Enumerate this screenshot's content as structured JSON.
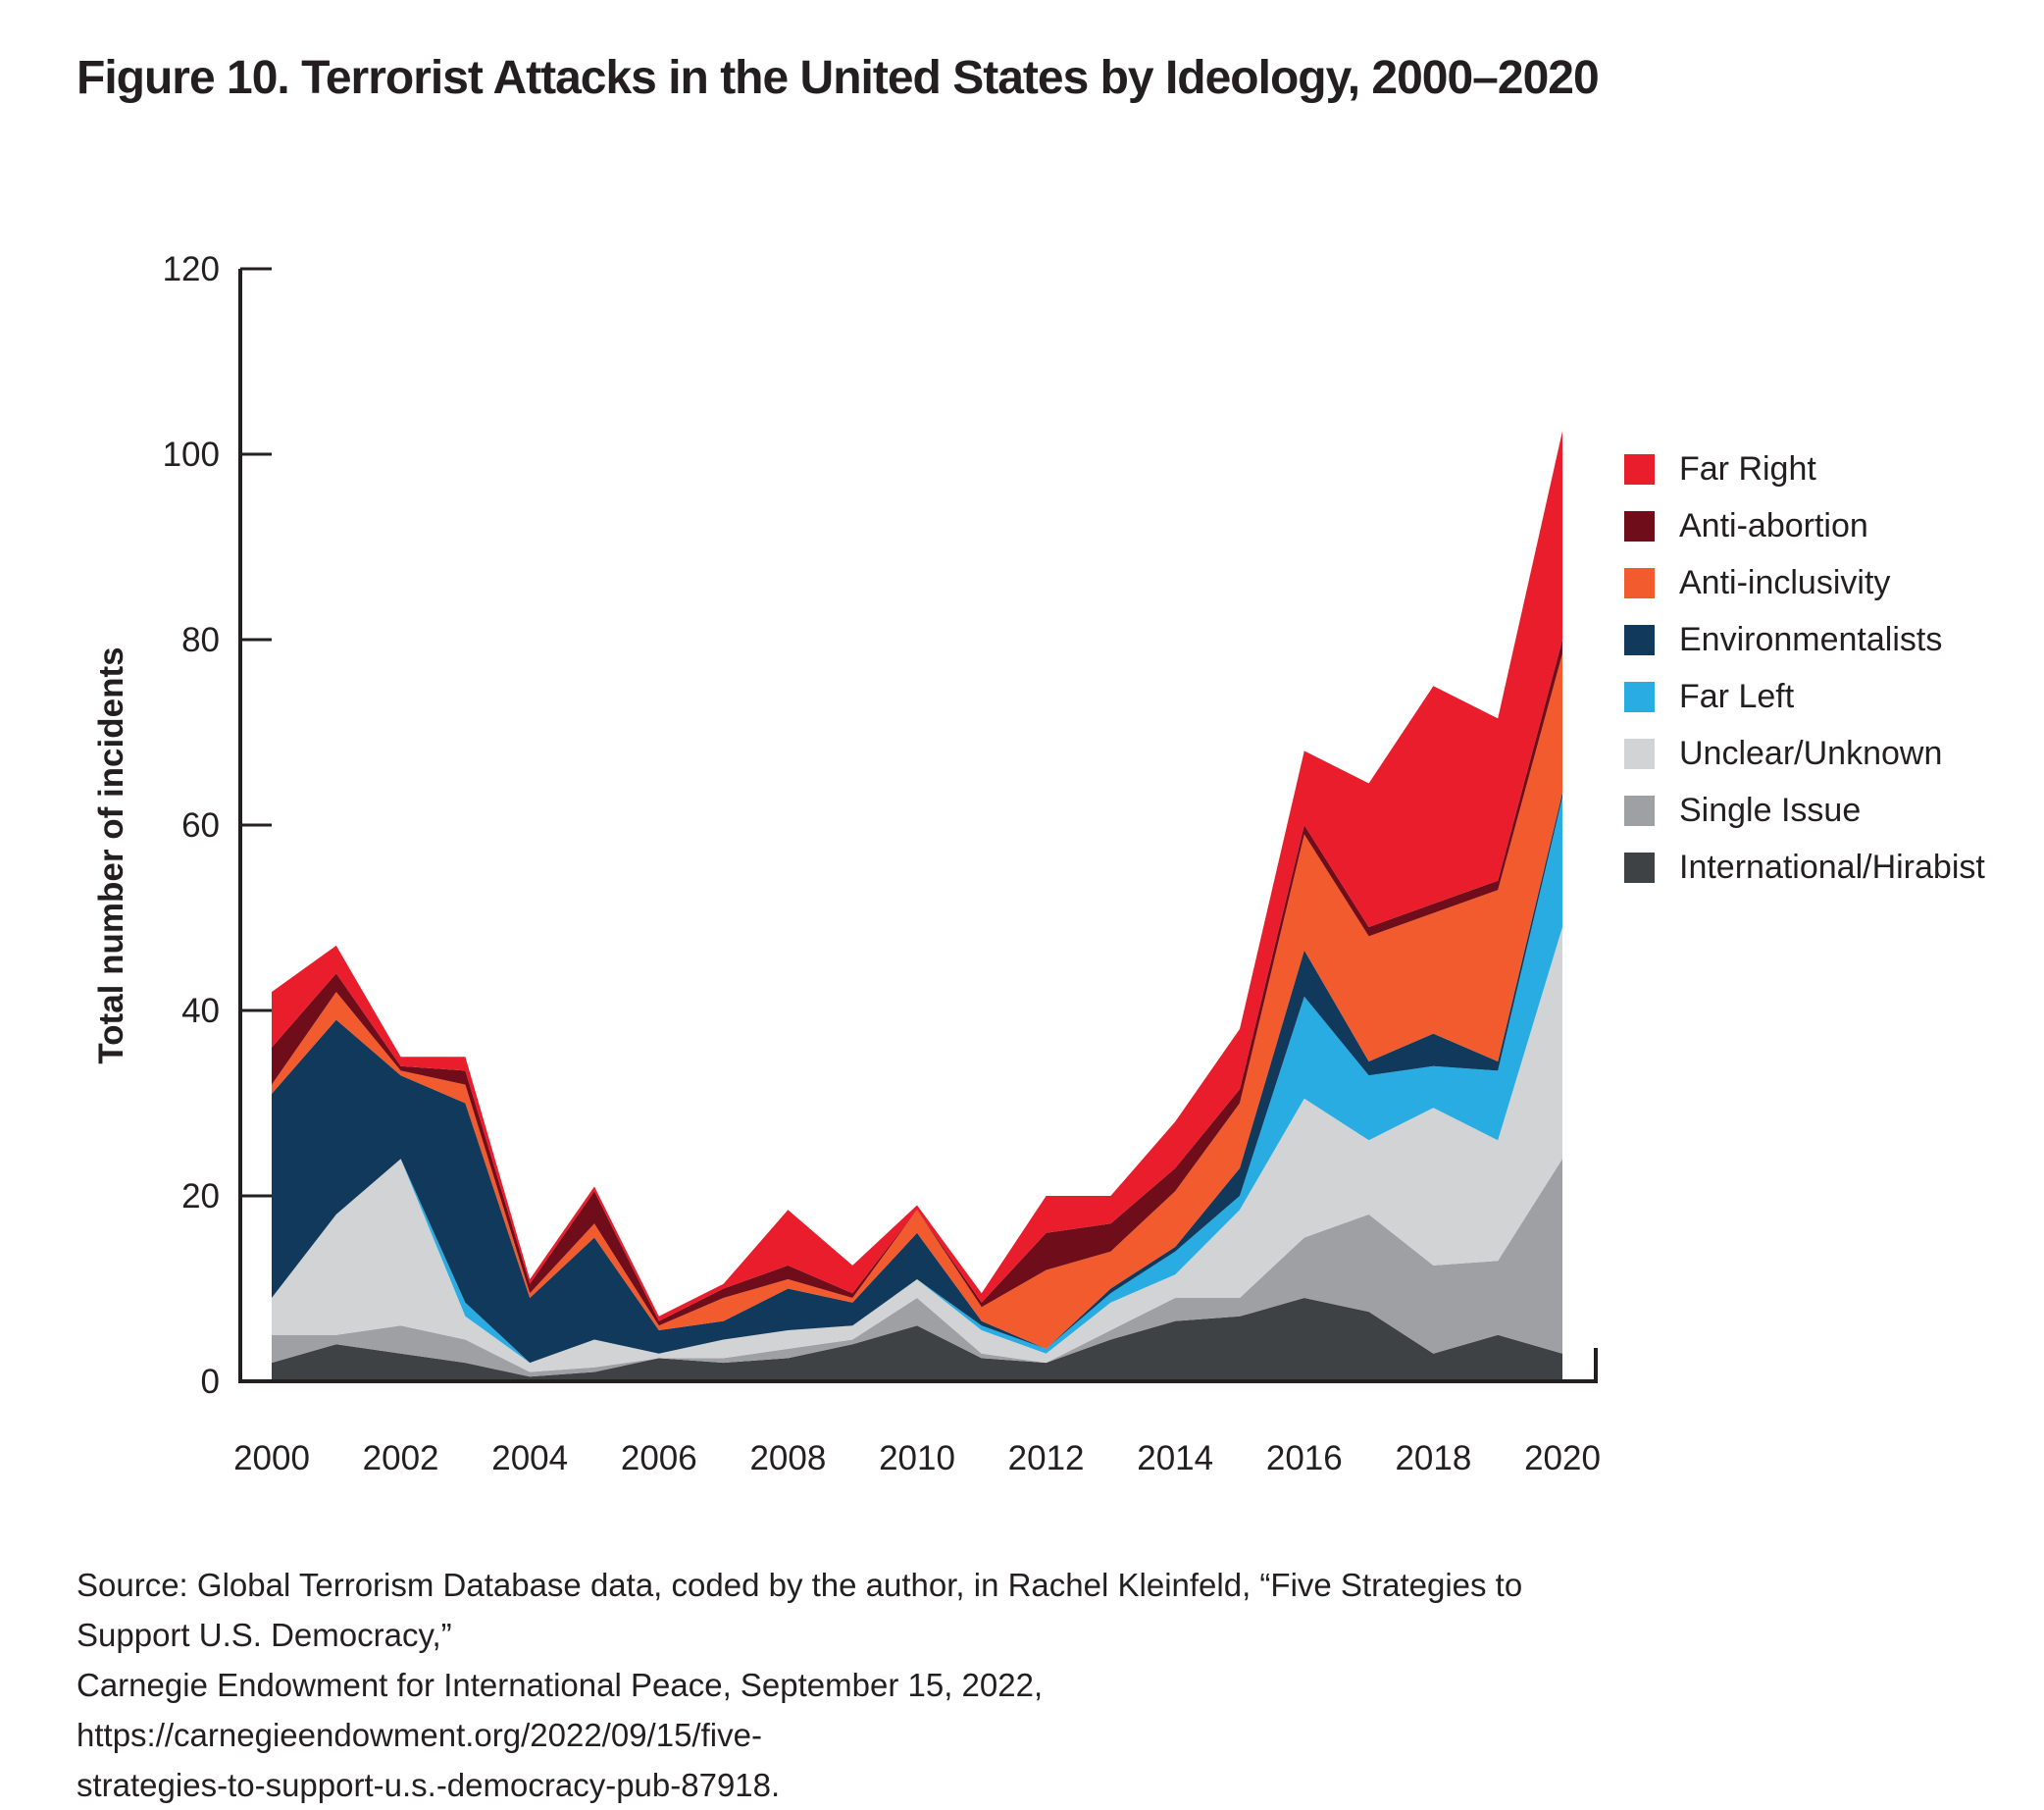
{
  "title": "Figure 10. Terrorist Attacks in the United States by Ideology, 2000–2020",
  "colors": {
    "axis": "#231f20",
    "text": "#231f20",
    "background": "#ffffff",
    "far_right": "#e91d2c",
    "anti_abortion": "#6f0d1a",
    "anti_inclusivity": "#f15b2e",
    "environmentalists": "#11395b",
    "far_left": "#29ace2",
    "unclear_unknown": "#d2d3d5",
    "single_issue": "#9ea0a3",
    "international_hirabist": "#3f4245"
  },
  "legend": [
    {
      "label": "Far Right",
      "color": "#e91d2c"
    },
    {
      "label": "Anti-abortion",
      "color": "#6f0d1a"
    },
    {
      "label": "Anti-inclusivity",
      "color": "#f15b2e"
    },
    {
      "label": "Environmentalists",
      "color": "#11395b"
    },
    {
      "label": "Far Left",
      "color": "#29ace2"
    },
    {
      "label": "Unclear/Unknown",
      "color": "#d2d3d5"
    },
    {
      "label": "Single Issue",
      "color": "#9ea0a3"
    },
    {
      "label": "International/Hirabist",
      "color": "#3f4245"
    }
  ],
  "source_lines": [
    "Source: Global Terrorism Database data, coded by the author, in Rachel Kleinfeld, “Five Strategies to Support U.S. Democracy,”",
    "Carnegie Endowment for International Peace, September 15, 2022, https://carnegieendowment.org/2022/09/15/five-",
    "strategies-to-support-u.s.-democracy-pub-87918."
  ],
  "chart_data": {
    "type": "area",
    "stacked": true,
    "title": "Figure 10. Terrorist Attacks in the United States by Ideology, 2000–2020",
    "xlabel": "",
    "ylabel": "Total number of incidents",
    "ylim": [
      0,
      120
    ],
    "y_ticks": [
      0,
      20,
      40,
      60,
      80,
      100,
      120
    ],
    "x_tick_labels": [
      "2000",
      "2002",
      "2004",
      "2006",
      "2008",
      "2010",
      "2012",
      "2014",
      "2016",
      "2018",
      "2020"
    ],
    "grid": false,
    "legend_position": "right",
    "x": [
      2000,
      2001,
      2002,
      2003,
      2004,
      2005,
      2006,
      2007,
      2008,
      2009,
      2010,
      2011,
      2012,
      2013,
      2014,
      2015,
      2016,
      2017,
      2018,
      2019,
      2020
    ],
    "stack_order": "bottom-to-top",
    "series": [
      {
        "name": "International/Hirabist",
        "color": "#3f4245",
        "values": [
          2,
          4,
          3,
          2,
          0.5,
          1,
          2.5,
          2,
          2.5,
          4,
          6,
          2.5,
          2,
          4.5,
          6.5,
          7,
          9,
          7.5,
          3,
          5,
          3
        ]
      },
      {
        "name": "Single Issue",
        "color": "#9ea0a3",
        "values": [
          3,
          1,
          3,
          2.5,
          0.5,
          0.5,
          0,
          0.5,
          1,
          0.5,
          3,
          0.5,
          0,
          1,
          2.5,
          2,
          6.5,
          10.5,
          9.5,
          8,
          21
        ]
      },
      {
        "name": "Unclear/Unknown",
        "color": "#d2d3d5",
        "values": [
          4,
          13,
          18,
          2.5,
          1,
          3,
          0.5,
          2,
          2,
          1.5,
          2,
          2.5,
          1,
          3,
          2.5,
          9.5,
          15,
          8,
          17,
          13,
          25
        ]
      },
      {
        "name": "Far Left",
        "color": "#29ace2",
        "values": [
          0,
          0,
          0,
          1.5,
          0,
          0,
          0,
          0,
          0,
          0,
          0,
          0.5,
          0.5,
          1,
          2.5,
          1.5,
          11,
          7,
          4.5,
          7.5,
          14
        ]
      },
      {
        "name": "Environmentalists",
        "color": "#11395b",
        "values": [
          22,
          21,
          9,
          21.5,
          7,
          11,
          2.5,
          2,
          4.5,
          2.5,
          5,
          0.5,
          0,
          0.5,
          0.5,
          3,
          5,
          1.5,
          3.5,
          1,
          0.5
        ]
      },
      {
        "name": "Anti-inclusivity",
        "color": "#f15b2e",
        "values": [
          1,
          3,
          0.5,
          2,
          0.5,
          1.5,
          0.5,
          2.5,
          1,
          0.5,
          2.5,
          1.5,
          8.5,
          4,
          6,
          7,
          12.5,
          13.5,
          13,
          18.5,
          15
        ]
      },
      {
        "name": "Anti-abortion",
        "color": "#6f0d1a",
        "values": [
          4,
          2,
          0.5,
          1.5,
          1,
          3.5,
          0.5,
          1,
          1.5,
          0.5,
          0,
          0.5,
          4,
          3,
          2.5,
          1.5,
          1,
          1,
          1,
          1,
          1.5
        ]
      },
      {
        "name": "Far Right",
        "color": "#e91d2c",
        "values": [
          6,
          3,
          1,
          1.5,
          0.5,
          0.5,
          0.5,
          0.5,
          6,
          3,
          0.5,
          1,
          4,
          3,
          5,
          6.5,
          8,
          15.5,
          23.5,
          17.5,
          22.5
        ]
      }
    ],
    "totals": [
      42,
      47,
      35,
      35,
      11,
      21,
      7,
      10.5,
      18.5,
      12.5,
      19,
      9.5,
      20,
      20,
      28,
      38,
      68,
      65,
      75,
      71.5,
      102.5
    ]
  }
}
